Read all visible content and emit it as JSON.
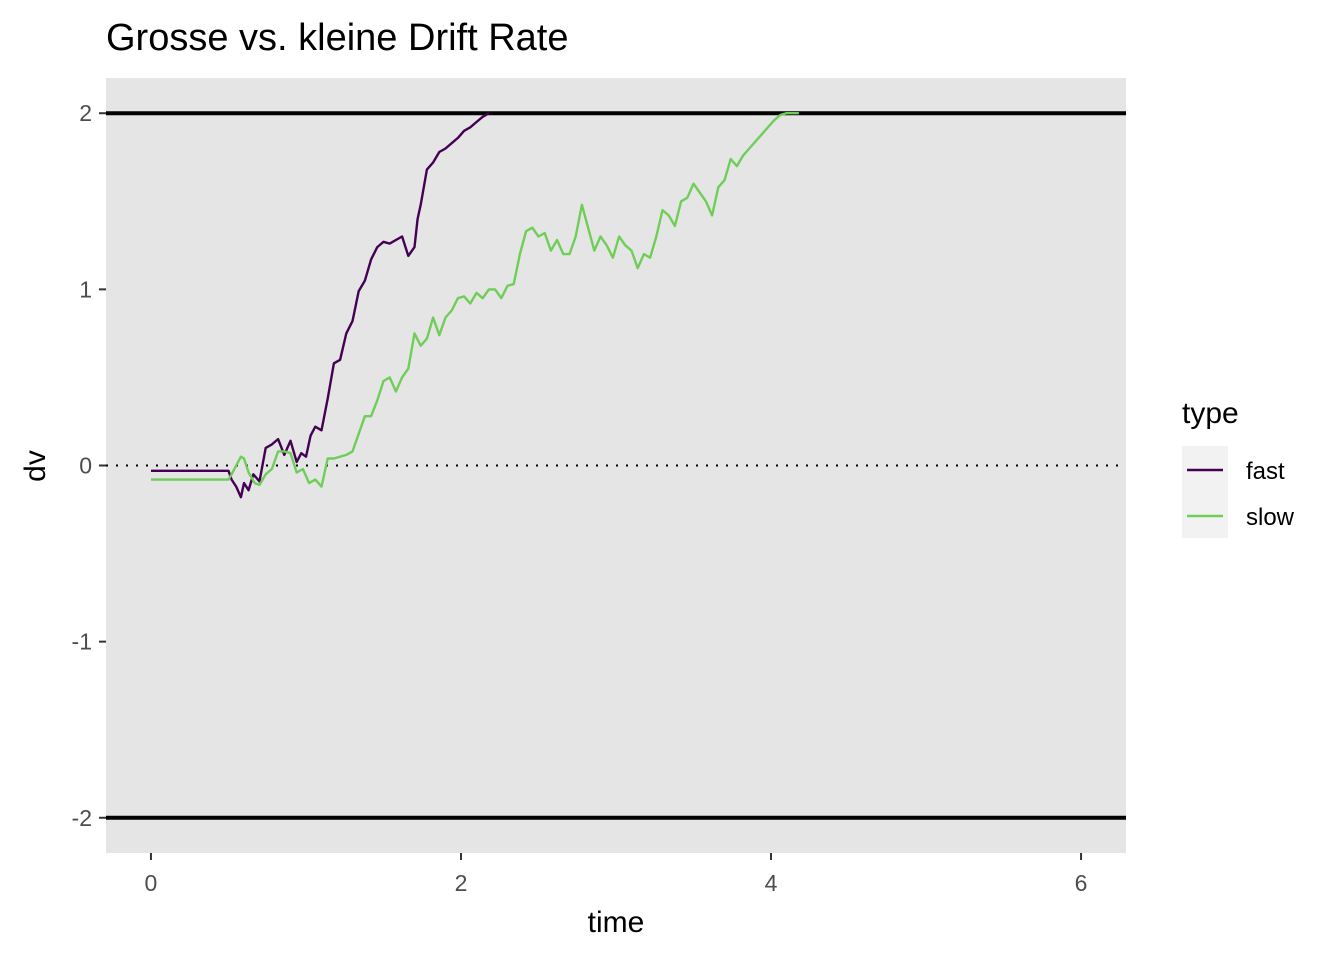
{
  "chart_data": {
    "type": "line",
    "title": "Grosse vs. kleine Drift Rate",
    "xlabel": "time",
    "ylabel": "dv",
    "xlim": [
      -0.29,
      6.29
    ],
    "ylim": [
      -2.2,
      2.2
    ],
    "x_ticks": [
      0,
      2,
      4,
      6
    ],
    "x_tick_labels": [
      "0",
      "2",
      "4",
      "6"
    ],
    "y_ticks": [
      2,
      1,
      0,
      -1,
      -2
    ],
    "y_tick_labels": [
      "2",
      "1",
      "0",
      "-1",
      "-2"
    ],
    "grid": false,
    "panel_background": "#e5e5e5",
    "legend": {
      "title": "type",
      "position": "right",
      "entries": [
        "fast",
        "slow"
      ]
    },
    "boundaries": [
      {
        "y": 2,
        "style": "solid",
        "color": "#000000"
      },
      {
        "y": -2,
        "style": "solid",
        "color": "#000000"
      },
      {
        "y": 0,
        "style": "dotted",
        "color": "#000000"
      }
    ],
    "series": [
      {
        "name": "fast",
        "color": "#440154",
        "x": [
          0,
          0.5,
          0.52,
          0.55,
          0.58,
          0.6,
          0.63,
          0.66,
          0.7,
          0.74,
          0.78,
          0.82,
          0.86,
          0.9,
          0.94,
          0.97,
          1.0,
          1.03,
          1.06,
          1.1,
          1.14,
          1.18,
          1.22,
          1.26,
          1.3,
          1.34,
          1.38,
          1.42,
          1.46,
          1.5,
          1.54,
          1.58,
          1.62,
          1.66,
          1.7,
          1.72,
          1.74,
          1.78,
          1.82,
          1.86,
          1.9,
          1.94,
          1.98,
          2.02,
          2.06,
          2.1,
          2.14,
          2.18
        ],
        "y": [
          -0.03,
          -0.03,
          -0.08,
          -0.12,
          -0.18,
          -0.1,
          -0.14,
          -0.05,
          -0.09,
          0.1,
          0.12,
          0.15,
          0.06,
          0.14,
          0.02,
          0.07,
          0.05,
          0.17,
          0.22,
          0.2,
          0.38,
          0.58,
          0.6,
          0.75,
          0.82,
          0.99,
          1.05,
          1.17,
          1.24,
          1.27,
          1.26,
          1.28,
          1.3,
          1.19,
          1.24,
          1.4,
          1.48,
          1.68,
          1.72,
          1.78,
          1.8,
          1.83,
          1.86,
          1.9,
          1.92,
          1.95,
          1.98,
          2.0
        ]
      },
      {
        "name": "slow",
        "color": "#6ece58",
        "x": [
          0,
          0.5,
          0.52,
          0.55,
          0.58,
          0.6,
          0.63,
          0.67,
          0.7,
          0.74,
          0.78,
          0.82,
          0.86,
          0.9,
          0.94,
          0.98,
          1.02,
          1.06,
          1.1,
          1.14,
          1.18,
          1.22,
          1.26,
          1.3,
          1.34,
          1.38,
          1.42,
          1.46,
          1.5,
          1.54,
          1.58,
          1.62,
          1.66,
          1.7,
          1.74,
          1.78,
          1.82,
          1.86,
          1.9,
          1.94,
          1.98,
          2.02,
          2.06,
          2.1,
          2.14,
          2.18,
          2.22,
          2.26,
          2.3,
          2.34,
          2.38,
          2.42,
          2.46,
          2.5,
          2.54,
          2.58,
          2.62,
          2.66,
          2.7,
          2.74,
          2.78,
          2.82,
          2.86,
          2.9,
          2.94,
          2.98,
          3.02,
          3.06,
          3.1,
          3.14,
          3.18,
          3.22,
          3.26,
          3.3,
          3.34,
          3.38,
          3.42,
          3.46,
          3.5,
          3.54,
          3.58,
          3.62,
          3.66,
          3.7,
          3.74,
          3.78,
          3.82,
          3.86,
          3.9,
          3.94,
          3.98,
          4.02,
          4.06,
          4.1,
          4.14,
          4.18
        ],
        "y": [
          -0.08,
          -0.08,
          -0.05,
          0.0,
          0.05,
          0.04,
          -0.04,
          -0.1,
          -0.11,
          -0.05,
          -0.02,
          0.08,
          0.08,
          0.07,
          -0.04,
          -0.02,
          -0.1,
          -0.08,
          -0.12,
          0.04,
          0.04,
          0.05,
          0.06,
          0.08,
          0.18,
          0.28,
          0.28,
          0.37,
          0.48,
          0.5,
          0.42,
          0.5,
          0.55,
          0.75,
          0.68,
          0.72,
          0.84,
          0.74,
          0.84,
          0.88,
          0.95,
          0.96,
          0.92,
          0.98,
          0.95,
          1.0,
          1.0,
          0.95,
          1.02,
          1.03,
          1.2,
          1.33,
          1.35,
          1.3,
          1.32,
          1.22,
          1.28,
          1.2,
          1.2,
          1.3,
          1.48,
          1.35,
          1.22,
          1.3,
          1.25,
          1.18,
          1.3,
          1.25,
          1.22,
          1.12,
          1.2,
          1.18,
          1.3,
          1.45,
          1.42,
          1.36,
          1.5,
          1.52,
          1.6,
          1.55,
          1.5,
          1.42,
          1.58,
          1.62,
          1.74,
          1.7,
          1.76,
          1.8,
          1.84,
          1.88,
          1.92,
          1.96,
          1.99,
          2.0,
          2.0,
          2.0
        ]
      }
    ]
  }
}
